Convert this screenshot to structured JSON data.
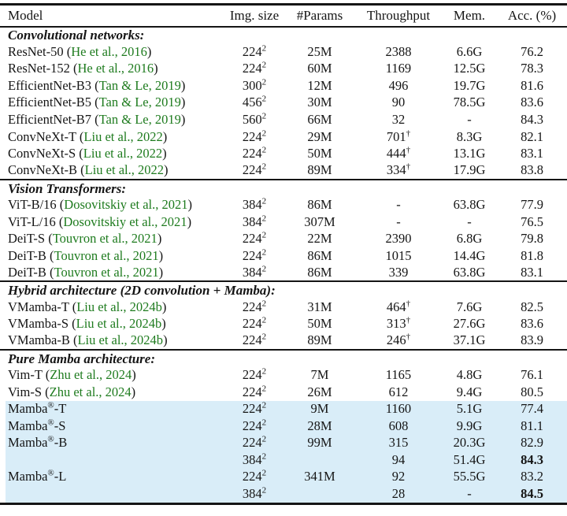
{
  "table": {
    "columns": [
      "Model",
      "Img. size",
      "#Params",
      "Throughput",
      "Mem.",
      "Acc. (%)"
    ],
    "sections": [
      {
        "title": "Convolutional networks:",
        "rows": [
          {
            "model": "ResNet-50",
            "cite": "He et al., 2016",
            "img": "224",
            "params": "25M",
            "tp": "2388",
            "tp_dagger": false,
            "mem": "6.6G",
            "acc": "76.2",
            "acc_bold": false,
            "hl": false
          },
          {
            "model": "ResNet-152",
            "cite": "He et al., 2016",
            "img": "224",
            "params": "60M",
            "tp": "1169",
            "tp_dagger": false,
            "mem": "12.5G",
            "acc": "78.3",
            "acc_bold": false,
            "hl": false
          },
          {
            "model": "EfficientNet-B3",
            "cite": "Tan & Le, 2019",
            "img": "300",
            "params": "12M",
            "tp": "496",
            "tp_dagger": false,
            "mem": "19.7G",
            "acc": "81.6",
            "acc_bold": false,
            "hl": false
          },
          {
            "model": "EfficientNet-B5",
            "cite": "Tan & Le, 2019",
            "img": "456",
            "params": "30M",
            "tp": "90",
            "tp_dagger": false,
            "mem": "78.5G",
            "acc": "83.6",
            "acc_bold": false,
            "hl": false
          },
          {
            "model": "EfficientNet-B7",
            "cite": "Tan & Le, 2019",
            "img": "560",
            "params": "66M",
            "tp": "32",
            "tp_dagger": false,
            "mem": "-",
            "acc": "84.3",
            "acc_bold": false,
            "hl": false
          },
          {
            "model": "ConvNeXt-T",
            "cite": "Liu et al., 2022",
            "img": "224",
            "params": "29M",
            "tp": "701",
            "tp_dagger": true,
            "mem": "8.3G",
            "acc": "82.1",
            "acc_bold": false,
            "hl": false
          },
          {
            "model": "ConvNeXt-S",
            "cite": "Liu et al., 2022",
            "img": "224",
            "params": "50M",
            "tp": "444",
            "tp_dagger": true,
            "mem": "13.1G",
            "acc": "83.1",
            "acc_bold": false,
            "hl": false
          },
          {
            "model": "ConvNeXt-B",
            "cite": "Liu et al., 2022",
            "img": "224",
            "params": "89M",
            "tp": "334",
            "tp_dagger": true,
            "mem": "17.9G",
            "acc": "83.8",
            "acc_bold": false,
            "hl": false
          }
        ]
      },
      {
        "title": "Vision Transformers:",
        "rows": [
          {
            "model": "ViT-B/16",
            "cite": "Dosovitskiy et al., 2021",
            "img": "384",
            "params": "86M",
            "tp": "-",
            "tp_dagger": false,
            "mem": "63.8G",
            "acc": "77.9",
            "acc_bold": false,
            "hl": false
          },
          {
            "model": "ViT-L/16",
            "cite": "Dosovitskiy et al., 2021",
            "img": "384",
            "params": "307M",
            "tp": "-",
            "tp_dagger": false,
            "mem": "-",
            "acc": "76.5",
            "acc_bold": false,
            "hl": false
          },
          {
            "model": "DeiT-S",
            "cite": "Touvron et al., 2021",
            "img": "224",
            "params": "22M",
            "tp": "2390",
            "tp_dagger": false,
            "mem": "6.8G",
            "acc": "79.8",
            "acc_bold": false,
            "hl": false
          },
          {
            "model": "DeiT-B",
            "cite": "Touvron et al., 2021",
            "img": "224",
            "params": "86M",
            "tp": "1015",
            "tp_dagger": false,
            "mem": "14.4G",
            "acc": "81.8",
            "acc_bold": false,
            "hl": false
          },
          {
            "model": "DeiT-B",
            "cite": "Touvron et al., 2021",
            "img": "384",
            "params": "86M",
            "tp": "339",
            "tp_dagger": false,
            "mem": "63.8G",
            "acc": "83.1",
            "acc_bold": false,
            "hl": false
          }
        ]
      },
      {
        "title": "Hybrid architecture (2D convolution + Mamba):",
        "rows": [
          {
            "model": "VMamba-T",
            "cite": "Liu et al., 2024b",
            "img": "224",
            "params": "31M",
            "tp": "464",
            "tp_dagger": true,
            "mem": "7.6G",
            "acc": "82.5",
            "acc_bold": false,
            "hl": false
          },
          {
            "model": "VMamba-S",
            "cite": "Liu et al., 2024b",
            "img": "224",
            "params": "50M",
            "tp": "313",
            "tp_dagger": true,
            "mem": "27.6G",
            "acc": "83.6",
            "acc_bold": false,
            "hl": false
          },
          {
            "model": "VMamba-B",
            "cite": "Liu et al., 2024b",
            "img": "224",
            "params": "89M",
            "tp": "246",
            "tp_dagger": true,
            "mem": "37.1G",
            "acc": "83.9",
            "acc_bold": false,
            "hl": false
          }
        ]
      },
      {
        "title": "Pure Mamba architecture:",
        "rows": [
          {
            "model": "Vim-T",
            "cite": "Zhu et al., 2024",
            "img": "224",
            "params": "7M",
            "tp": "1165",
            "tp_dagger": false,
            "mem": "4.8G",
            "acc": "76.1",
            "acc_bold": false,
            "hl": false
          },
          {
            "model": "Vim-S",
            "cite": "Zhu et al., 2024",
            "img": "224",
            "params": "26M",
            "tp": "612",
            "tp_dagger": false,
            "mem": "9.4G",
            "acc": "80.5",
            "acc_bold": false,
            "hl": false
          },
          {
            "model": "Mamba",
            "reg": true,
            "suffix": "-T",
            "cite": null,
            "img": "224",
            "params": "9M",
            "tp": "1160",
            "tp_dagger": false,
            "mem": "5.1G",
            "acc": "77.4",
            "acc_bold": false,
            "hl": true
          },
          {
            "model": "Mamba",
            "reg": true,
            "suffix": "-S",
            "cite": null,
            "img": "224",
            "params": "28M",
            "tp": "608",
            "tp_dagger": false,
            "mem": "9.9G",
            "acc": "81.1",
            "acc_bold": false,
            "hl": true
          },
          {
            "model": "Mamba",
            "reg": true,
            "suffix": "-B",
            "cite": null,
            "img": "224",
            "params": "99M",
            "tp": "315",
            "tp_dagger": false,
            "mem": "20.3G",
            "acc": "82.9",
            "acc_bold": false,
            "hl": true
          },
          {
            "model": "",
            "cite": null,
            "img": "384",
            "params": "",
            "tp": "94",
            "tp_dagger": false,
            "mem": "51.4G",
            "acc": "84.3",
            "acc_bold": true,
            "hl": true
          },
          {
            "model": "Mamba",
            "reg": true,
            "suffix": "-L",
            "cite": null,
            "img": "224",
            "params": "341M",
            "tp": "92",
            "tp_dagger": false,
            "mem": "55.5G",
            "acc": "83.2",
            "acc_bold": false,
            "hl": true
          },
          {
            "model": "",
            "cite": null,
            "img": "384",
            "params": "",
            "tp": "28",
            "tp_dagger": false,
            "mem": "-",
            "acc": "84.5",
            "acc_bold": true,
            "hl": true
          }
        ]
      }
    ]
  },
  "symbols": {
    "squared": "2",
    "dagger": "†",
    "registered": "®",
    "dash": "-"
  },
  "colors": {
    "citation_green": "#1e7b1e",
    "highlight_blue": "#d9edf8",
    "text_black": "#151515"
  }
}
